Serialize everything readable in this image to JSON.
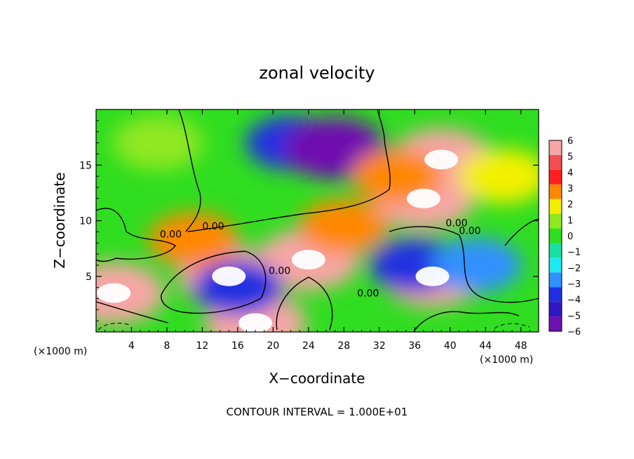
{
  "chart_data": {
    "type": "heatmap",
    "title": "zonal velocity",
    "xlabel": "X−coordinate",
    "ylabel": "Z−coordinate",
    "x_unit_left": "(×1000 m)",
    "x_unit_right": "(×1000 m)",
    "xlim": [
      0,
      50
    ],
    "ylim": [
      0,
      20
    ],
    "x_ticks": [
      4,
      8,
      12,
      16,
      20,
      24,
      28,
      32,
      36,
      40,
      44,
      48
    ],
    "x_tick_labels": [
      "4",
      "8",
      "12",
      "16",
      "20",
      "24",
      "28",
      "32",
      "36",
      "40",
      "44",
      "48"
    ],
    "y_ticks": [
      5,
      10,
      15
    ],
    "y_tick_labels": [
      "5",
      "10",
      "15"
    ],
    "colorbar": {
      "levels": [
        6,
        5,
        4,
        3,
        2,
        1,
        0,
        -1,
        -2,
        -3,
        -4,
        -5,
        -6
      ],
      "labels": [
        "6",
        "5",
        "4",
        "3",
        "2",
        "1",
        "0",
        "−1",
        "−2",
        "−3",
        "−4",
        "−5",
        "−6"
      ],
      "colors": [
        "#f7a6a6",
        "#f05050",
        "#ff2020",
        "#ff8800",
        "#f2f000",
        "#90e820",
        "#30dd20",
        "#18e0a0",
        "#20e8f0",
        "#3090ff",
        "#2030e0",
        "#3018c0",
        "#7010b0"
      ],
      "above_range_color": "#ffffff"
    },
    "contour_labels": [
      "0.00",
      "0.00",
      "0.00",
      "0.00",
      "0.00",
      "0.00"
    ],
    "contour_interval_text": "CONTOUR INTERVAL = 1.000E+01",
    "grid": false,
    "field_features": [
      {
        "x": 22,
        "z": 17,
        "value": -4.5
      },
      {
        "x": 27,
        "z": 16.5,
        "value": -6
      },
      {
        "x": 39,
        "z": 15.5,
        "value": 6
      },
      {
        "x": 37,
        "z": 12,
        "value": 6
      },
      {
        "x": 34,
        "z": 14,
        "value": 3
      },
      {
        "x": 2,
        "z": 3.5,
        "value": 6
      },
      {
        "x": 15,
        "z": 5,
        "value": 6
      },
      {
        "x": 24,
        "z": 6.5,
        "value": 6
      },
      {
        "x": 11,
        "z": 8.3,
        "value": 3
      },
      {
        "x": 28,
        "z": 9.5,
        "value": 3
      },
      {
        "x": 18,
        "z": 0.8,
        "value": 6
      },
      {
        "x": 38,
        "z": 5,
        "value": 6
      },
      {
        "x": 36,
        "z": 6,
        "value": -4
      },
      {
        "x": 43,
        "z": 6,
        "value": -3
      },
      {
        "x": 16,
        "z": 4,
        "value": -4
      },
      {
        "x": 7,
        "z": 17,
        "value": 1
      },
      {
        "x": 46,
        "z": 14,
        "value": 2
      }
    ]
  }
}
